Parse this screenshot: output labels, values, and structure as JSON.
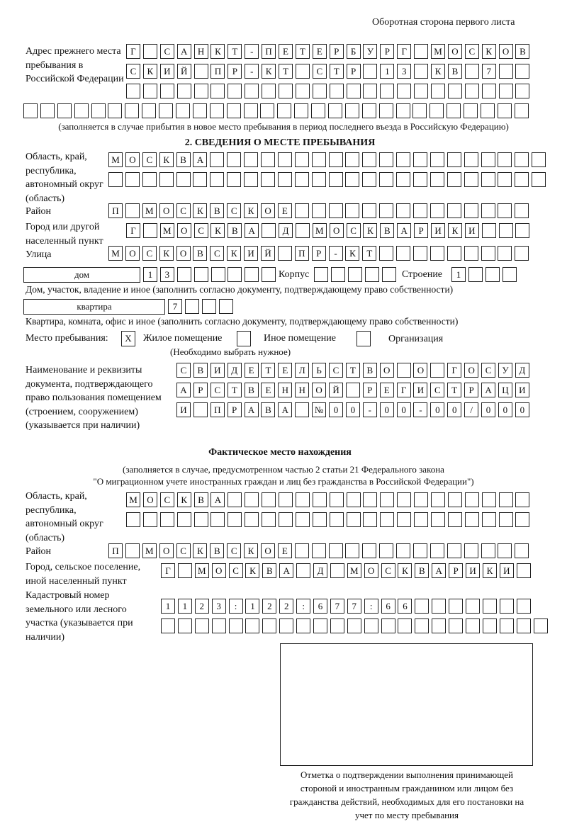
{
  "header": "Оборотная сторона первого листа",
  "prev_address": {
    "label": "Адрес прежнего места пребывания в Российской Федерации",
    "rows": [
      [
        "Г",
        " ",
        "С",
        "А",
        "Н",
        "К",
        "Т",
        "-",
        "П",
        "Е",
        "Т",
        "Е",
        "Р",
        "Б",
        "У",
        "Р",
        "Г",
        " ",
        "М",
        "О",
        "С",
        "К",
        "О",
        "В"
      ],
      [
        "С",
        "К",
        "И",
        "Й",
        " ",
        "П",
        "Р",
        "-",
        "К",
        "Т",
        " ",
        "С",
        "Т",
        "Р",
        " ",
        "1",
        "3",
        " ",
        "К",
        "В",
        " ",
        "7",
        " ",
        " "
      ],
      [
        " ",
        " ",
        " ",
        " ",
        " ",
        " ",
        " ",
        " ",
        " ",
        " ",
        " ",
        " ",
        " ",
        " ",
        " ",
        " ",
        " ",
        " ",
        " ",
        " ",
        " ",
        " ",
        " ",
        " "
      ],
      [
        " ",
        " ",
        " ",
        " ",
        " ",
        " ",
        " ",
        " ",
        " ",
        " ",
        " ",
        " ",
        " ",
        " ",
        " ",
        " ",
        " ",
        " ",
        " ",
        " ",
        " ",
        " ",
        " ",
        " ",
        " ",
        " ",
        " ",
        " ",
        " ",
        " "
      ]
    ],
    "note": "(заполняется в случае прибытия в новое место пребывания в период последнего въезда в Российскую Федерацию)"
  },
  "section2": {
    "title": "2. СВЕДЕНИЯ О МЕСТЕ ПРЕБЫВАНИЯ",
    "region_label": "Область, край, республика, автономный округ (область)",
    "region_rows": [
      [
        "М",
        "О",
        "С",
        "К",
        "В",
        "А",
        " ",
        " ",
        " ",
        " ",
        " ",
        " ",
        " ",
        " ",
        " ",
        " ",
        " ",
        " ",
        " ",
        " ",
        " ",
        " ",
        " ",
        " ",
        " ",
        " "
      ],
      [
        " ",
        " ",
        " ",
        " ",
        " ",
        " ",
        " ",
        " ",
        " ",
        " ",
        " ",
        " ",
        " ",
        " ",
        " ",
        " ",
        " ",
        " ",
        " ",
        " ",
        " ",
        " ",
        " ",
        " ",
        " ",
        " "
      ]
    ],
    "district_label": "Район",
    "district_row": [
      "П",
      " ",
      "М",
      "О",
      "С",
      "К",
      "В",
      "С",
      "К",
      "О",
      "Е",
      " ",
      " ",
      " ",
      " ",
      " ",
      " ",
      " ",
      " ",
      " ",
      " ",
      " ",
      " ",
      " ",
      " "
    ],
    "city_label": "Город или другой населенный пункт",
    "city_row": [
      "Г",
      " ",
      "М",
      "О",
      "С",
      "К",
      "В",
      "А",
      " ",
      "Д",
      " ",
      "М",
      "О",
      "С",
      "К",
      "В",
      "А",
      "Р",
      "И",
      "К",
      "И",
      " ",
      " ",
      " "
    ],
    "street_label": "Улица",
    "street_row": [
      "М",
      "О",
      "С",
      "К",
      "О",
      "В",
      "С",
      "К",
      "И",
      "Й",
      " ",
      "П",
      "Р",
      "-",
      "К",
      "Т",
      " ",
      " ",
      " ",
      " ",
      " ",
      " ",
      " ",
      " ",
      " "
    ],
    "house_type": "дом",
    "house_cells": [
      "1",
      "3",
      " ",
      " ",
      " ",
      " ",
      " ",
      " "
    ],
    "korpus_label": "Корпус",
    "korpus_cells": [
      " ",
      " ",
      " ",
      " ",
      " "
    ],
    "stroenie_label": "Строение",
    "stroenie_cells": [
      "1",
      " ",
      " ",
      " "
    ],
    "house_note": "Дом, участок, владение и иное (заполнить согласно документу, подтверждающему право собственности)",
    "apt_type": "квартира",
    "apt_cells": [
      "7",
      " ",
      " ",
      " "
    ],
    "apt_note": "Квартира, комната, офис и иное (заполнить согласно документу, подтверждающему право собственности)",
    "stay_label": "Место пребывания:",
    "stay_options": [
      {
        "label": "Жилое помещение",
        "mark": "X"
      },
      {
        "label": "Иное помещение",
        "mark": ""
      },
      {
        "label": "Организация",
        "mark": ""
      }
    ],
    "stay_note": "(Необходимо выбрать нужное)",
    "doc_label": "Наименование и реквизиты документа, подтверждающего право пользования помещением (строением, сооружением) (указывается при наличии)",
    "doc_rows": [
      [
        "С",
        "В",
        "И",
        "Д",
        "Е",
        "Т",
        "Е",
        "Л",
        "Ь",
        "С",
        "Т",
        "В",
        "О",
        " ",
        "О",
        " ",
        "Г",
        "О",
        "С",
        "У",
        "Д"
      ],
      [
        "А",
        "Р",
        "С",
        "Т",
        "В",
        "Е",
        "Н",
        "Н",
        "О",
        "Й",
        " ",
        "Р",
        "Е",
        "Г",
        "И",
        "С",
        "Т",
        "Р",
        "А",
        "Ц",
        "И"
      ],
      [
        "И",
        " ",
        "П",
        "Р",
        "А",
        "В",
        "А",
        " ",
        "№",
        "0",
        "0",
        "-",
        "0",
        "0",
        "-",
        "0",
        "0",
        "/",
        "0",
        "0",
        "0"
      ]
    ]
  },
  "actual": {
    "title": "Фактическое место нахождения",
    "note1": "(заполняется в случае, предусмотренном частью 2 статьи 21 Федерального закона",
    "note2": "\"О миграционном учете иностранных граждан и лиц без гражданства в Российской Федерации\")",
    "region_label": "Область, край, республика, автономный округ (область)",
    "region_rows": [
      [
        "М",
        "О",
        "С",
        "К",
        "В",
        "А",
        " ",
        " ",
        " ",
        " ",
        " ",
        " ",
        " ",
        " ",
        " ",
        " ",
        " ",
        " ",
        " ",
        " ",
        " ",
        " ",
        " ",
        " "
      ],
      [
        " ",
        " ",
        " ",
        " ",
        " ",
        " ",
        " ",
        " ",
        " ",
        " ",
        " ",
        " ",
        " ",
        " ",
        " ",
        " ",
        " ",
        " ",
        " ",
        " ",
        " ",
        " ",
        " ",
        " "
      ]
    ],
    "district_label": "Район",
    "district_row": [
      "П",
      " ",
      "М",
      "О",
      "С",
      "К",
      "В",
      "С",
      "К",
      "О",
      "Е",
      " ",
      " ",
      " ",
      " ",
      " ",
      " ",
      " ",
      " ",
      " ",
      " ",
      " ",
      " ",
      " ",
      " "
    ],
    "city_label": "Город, сельское поселение, иной населенный пункт",
    "city_row": [
      "Г",
      " ",
      "М",
      "О",
      "С",
      "К",
      "В",
      "А",
      " ",
      "Д",
      " ",
      "М",
      "О",
      "С",
      "К",
      "В",
      "А",
      "Р",
      "И",
      "К",
      "И",
      " "
    ],
    "cadastral_label": "Кадастровый номер земельного или лесного участка (указывается при наличии)",
    "cadastral_rows": [
      [
        "1",
        "1",
        "2",
        "3",
        ":",
        "1",
        "2",
        "2",
        ":",
        "6",
        "7",
        "7",
        ":",
        "6",
        "6",
        " ",
        " ",
        " ",
        " ",
        " ",
        " ",
        " "
      ],
      [
        " ",
        " ",
        " ",
        " ",
        " ",
        " ",
        " ",
        " ",
        " ",
        " ",
        " ",
        " ",
        " ",
        " ",
        " ",
        " ",
        " ",
        " ",
        " ",
        " ",
        " ",
        " ",
        " "
      ]
    ],
    "stamp_caption": "Отметка о подтверждении выполнения принимающей стороной и иностранным гражданином или лицом без гражданства действий, необходимых для его постановки на учет по месту пребывания"
  }
}
